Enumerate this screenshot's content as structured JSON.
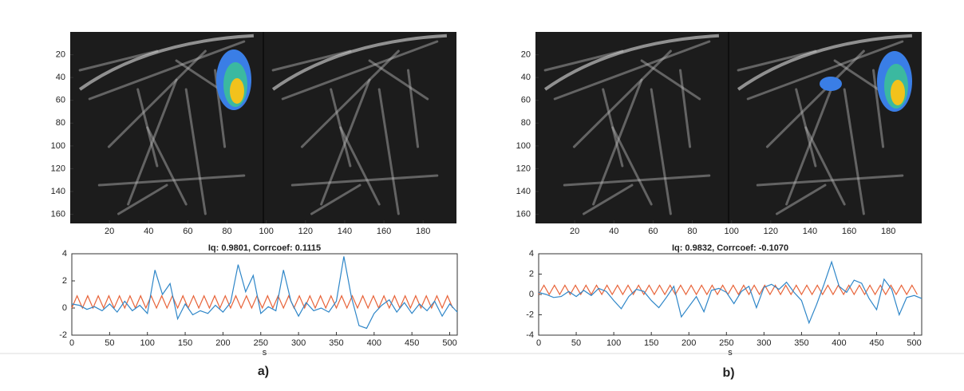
{
  "chart_data": [
    {
      "type": "image",
      "xlim": [
        0,
        197
      ],
      "ylim": [
        168,
        0
      ],
      "xticks": [
        20,
        40,
        60,
        80,
        100,
        120,
        140,
        160,
        180
      ],
      "yticks": [
        20,
        40,
        60,
        80,
        100,
        120,
        140,
        160
      ]
    },
    {
      "type": "line",
      "title": "Iq: 0.9801, Corrcoef: 0.1115",
      "xlabel": "s",
      "xlim": [
        0,
        510
      ],
      "ylim": [
        -2,
        4
      ],
      "xticks": [
        0,
        50,
        100,
        150,
        200,
        250,
        300,
        350,
        400,
        450,
        500
      ],
      "yticks": [
        -2,
        0,
        2,
        4
      ],
      "series": [
        {
          "color": "#e8643a",
          "x": [
            0,
            7,
            14,
            21,
            28,
            35,
            42,
            49,
            56,
            63,
            70,
            77,
            84,
            91,
            98,
            105,
            112,
            119,
            126,
            133,
            140,
            147,
            154,
            161,
            168,
            175,
            182,
            189,
            196,
            203,
            210,
            217,
            224,
            231,
            238,
            245,
            252,
            259,
            266,
            273,
            280,
            287,
            294,
            301,
            308,
            315,
            322,
            329,
            336,
            343,
            350,
            357,
            364,
            371,
            378,
            385,
            392,
            399,
            406,
            413,
            420,
            427,
            434,
            441,
            448,
            455,
            462,
            469,
            476,
            483,
            490,
            497,
            504
          ],
          "values": [
            0,
            0.9,
            0,
            0.9,
            0,
            0.9,
            0,
            0.9,
            0,
            0.9,
            0,
            0.9,
            0,
            0.9,
            0,
            0.9,
            0,
            0.9,
            0,
            0.9,
            0,
            0.9,
            0,
            0.9,
            0,
            0.9,
            0,
            0.9,
            0,
            0.9,
            0,
            0.9,
            0,
            0.9,
            0,
            0.9,
            0,
            0.9,
            0,
            0.9,
            0,
            0.9,
            0,
            0.9,
            0,
            0.9,
            0,
            0.9,
            0,
            0.9,
            0,
            0.9,
            0,
            0.9,
            0,
            0.9,
            0,
            0.9,
            0,
            0.9,
            0,
            0.9,
            0,
            0.9,
            0,
            0.9,
            0,
            0.9,
            0,
            0.9,
            0,
            0.9,
            0
          ]
        },
        {
          "color": "#2e86c8",
          "x": [
            0,
            10,
            20,
            30,
            40,
            50,
            60,
            70,
            80,
            90,
            100,
            110,
            120,
            130,
            140,
            150,
            160,
            170,
            180,
            190,
            200,
            210,
            220,
            230,
            240,
            250,
            260,
            270,
            280,
            290,
            300,
            310,
            320,
            330,
            340,
            350,
            360,
            370,
            380,
            390,
            400,
            410,
            420,
            430,
            440,
            450,
            460,
            470,
            480,
            490,
            500,
            510
          ],
          "values": [
            0.3,
            0.2,
            -0.1,
            0.1,
            -0.2,
            0.3,
            -0.3,
            0.5,
            -0.2,
            0.2,
            -0.4,
            2.8,
            1.0,
            1.8,
            -0.8,
            0.3,
            -0.5,
            -0.2,
            -0.4,
            0.2,
            -0.3,
            0.4,
            3.2,
            1.2,
            2.4,
            -0.4,
            0.1,
            -0.2,
            2.8,
            0.5,
            -0.6,
            0.4,
            -0.2,
            0.0,
            -0.3,
            0.5,
            3.8,
            0.8,
            -1.3,
            -1.5,
            -0.4,
            0.2,
            0.6,
            -0.3,
            0.4,
            -0.4,
            0.3,
            -0.2,
            0.5,
            -0.6,
            0.3,
            -0.3
          ]
        }
      ]
    },
    {
      "type": "image",
      "xlim": [
        0,
        197
      ],
      "ylim": [
        168,
        0
      ],
      "xticks": [
        20,
        40,
        60,
        80,
        100,
        120,
        140,
        160,
        180
      ],
      "yticks": [
        20,
        40,
        60,
        80,
        100,
        120,
        140,
        160
      ]
    },
    {
      "type": "line",
      "title": "Iq: 0.9832, Corrcoef: -0.1070",
      "xlabel": "s",
      "xlim": [
        0,
        510
      ],
      "ylim": [
        -4,
        4
      ],
      "xticks": [
        0,
        50,
        100,
        150,
        200,
        250,
        300,
        350,
        400,
        450,
        500
      ],
      "yticks": [
        -4,
        -2,
        0,
        2,
        4
      ],
      "series": [
        {
          "color": "#e8643a",
          "x": [
            0,
            7,
            14,
            21,
            28,
            35,
            42,
            49,
            56,
            63,
            70,
            77,
            84,
            91,
            98,
            105,
            112,
            119,
            126,
            133,
            140,
            147,
            154,
            161,
            168,
            175,
            182,
            189,
            196,
            203,
            210,
            217,
            224,
            231,
            238,
            245,
            252,
            259,
            266,
            273,
            280,
            287,
            294,
            301,
            308,
            315,
            322,
            329,
            336,
            343,
            350,
            357,
            364,
            371,
            378,
            385,
            392,
            399,
            406,
            413,
            420,
            427,
            434,
            441,
            448,
            455,
            462,
            469,
            476,
            483,
            490,
            497,
            504
          ],
          "values": [
            0,
            0.9,
            0,
            0.9,
            0,
            0.9,
            0,
            0.9,
            0,
            0.9,
            0,
            0.9,
            0,
            0.9,
            0,
            0.9,
            0,
            0.9,
            0,
            0.9,
            0,
            0.9,
            0,
            0.9,
            0,
            0.9,
            0,
            0.9,
            0,
            0.9,
            0,
            0.9,
            0,
            0.9,
            0,
            0.9,
            0,
            0.9,
            0,
            0.9,
            0,
            0.9,
            0,
            0.9,
            0,
            0.9,
            0,
            0.9,
            0,
            0.9,
            0,
            0.9,
            0,
            0.9,
            0,
            0.9,
            0,
            0.9,
            0,
            0.9,
            0,
            0.9,
            0,
            0.9,
            0,
            0.9,
            0,
            0.9,
            0,
            0.9,
            0,
            0.9,
            0
          ]
        },
        {
          "color": "#2e86c8",
          "x": [
            0,
            10,
            20,
            30,
            40,
            50,
            60,
            70,
            80,
            90,
            100,
            110,
            120,
            130,
            140,
            150,
            160,
            170,
            180,
            190,
            200,
            210,
            220,
            230,
            240,
            250,
            260,
            270,
            280,
            290,
            300,
            310,
            320,
            330,
            340,
            350,
            360,
            370,
            380,
            390,
            400,
            410,
            420,
            430,
            440,
            450,
            460,
            470,
            480,
            490,
            500,
            510
          ],
          "values": [
            0.2,
            0.0,
            -0.3,
            -0.2,
            0.3,
            -0.2,
            0.4,
            -0.1,
            0.6,
            0.3,
            -0.6,
            -1.4,
            -0.2,
            0.5,
            0.3,
            -0.6,
            -1.3,
            -0.3,
            0.8,
            -2.2,
            -1.2,
            -0.2,
            -1.7,
            0.4,
            0.6,
            0.2,
            -0.9,
            0.3,
            0.8,
            -1.3,
            0.7,
            1.0,
            0.5,
            1.2,
            0.2,
            -0.6,
            -2.8,
            -1.0,
            1.0,
            3.2,
            0.8,
            0.2,
            1.4,
            1.1,
            -0.4,
            -1.5,
            1.5,
            0.5,
            -2.0,
            -0.3,
            -0.1,
            -0.4
          ]
        }
      ]
    }
  ],
  "captions": [
    "a)",
    "b)"
  ]
}
